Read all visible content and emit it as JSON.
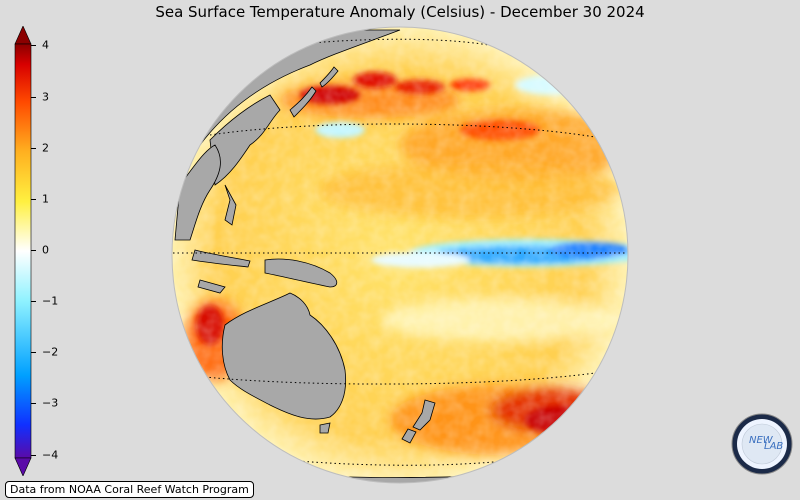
{
  "title": "Sea Surface Temperature Anomaly (Celsius) - December 30 2024",
  "colorbar": {
    "ticks": [
      "4",
      "3",
      "2",
      "1",
      "0",
      "−1",
      "−2",
      "−3",
      "−4"
    ],
    "colors": [
      "#6a0dad",
      "#0a3fff",
      "#00a8ff",
      "#8ff0ff",
      "#ffffff",
      "#fff24a",
      "#ffb020",
      "#ff5a00",
      "#e00000",
      "#8b0000"
    ]
  },
  "map": {
    "land_color": "#a8a8a8",
    "equator_anomaly_color": "#33aaff"
  },
  "credit": "Data from NOAA Coral Reef Watch Program",
  "logo": {
    "text_left": "NEW",
    "text_right": "LAB"
  }
}
